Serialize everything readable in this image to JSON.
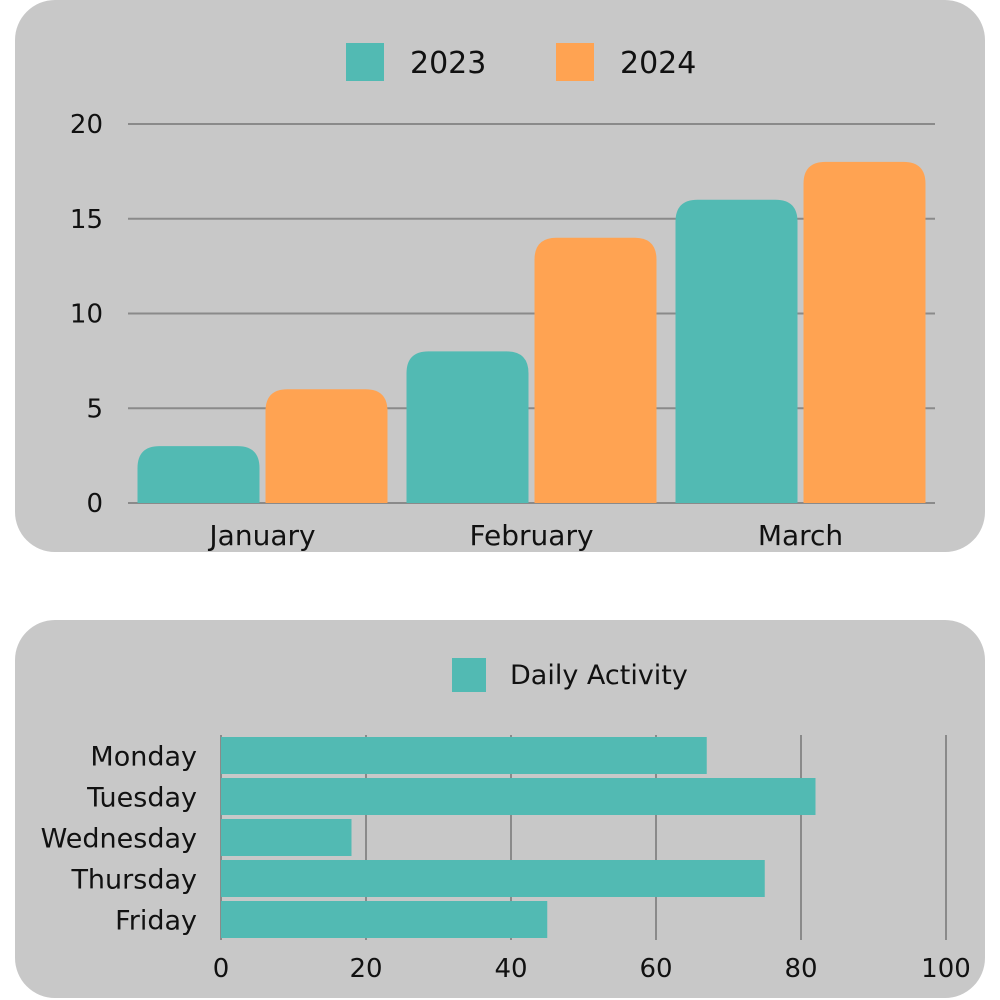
{
  "colors": {
    "series_2023": "#52bab3",
    "series_2024": "#ffa352",
    "daily": "#52bab3",
    "grid": "#8a8a8a",
    "panel": "#c8c8c8"
  },
  "chart_data": [
    {
      "type": "bar",
      "orientation": "vertical",
      "title": "",
      "xlabel": "",
      "ylabel": "",
      "categories": [
        "January",
        "February",
        "March"
      ],
      "series": [
        {
          "name": "2023",
          "values": [
            3,
            8,
            16
          ]
        },
        {
          "name": "2024",
          "values": [
            6,
            14,
            18
          ]
        }
      ],
      "ylim": [
        0,
        20
      ],
      "yticks": [
        0,
        5,
        10,
        15,
        20
      ],
      "grid": true,
      "legend": "top"
    },
    {
      "type": "bar",
      "orientation": "horizontal",
      "title": "",
      "xlabel": "",
      "ylabel": "",
      "categories": [
        "Monday",
        "Tuesday",
        "Wednesday",
        "Thursday",
        "Friday"
      ],
      "series": [
        {
          "name": "Daily Activity",
          "values": [
            67,
            82,
            18,
            75,
            45
          ]
        }
      ],
      "xlim": [
        0,
        100
      ],
      "xticks": [
        0,
        20,
        40,
        60,
        80,
        100
      ],
      "grid": true,
      "legend": "top"
    }
  ]
}
